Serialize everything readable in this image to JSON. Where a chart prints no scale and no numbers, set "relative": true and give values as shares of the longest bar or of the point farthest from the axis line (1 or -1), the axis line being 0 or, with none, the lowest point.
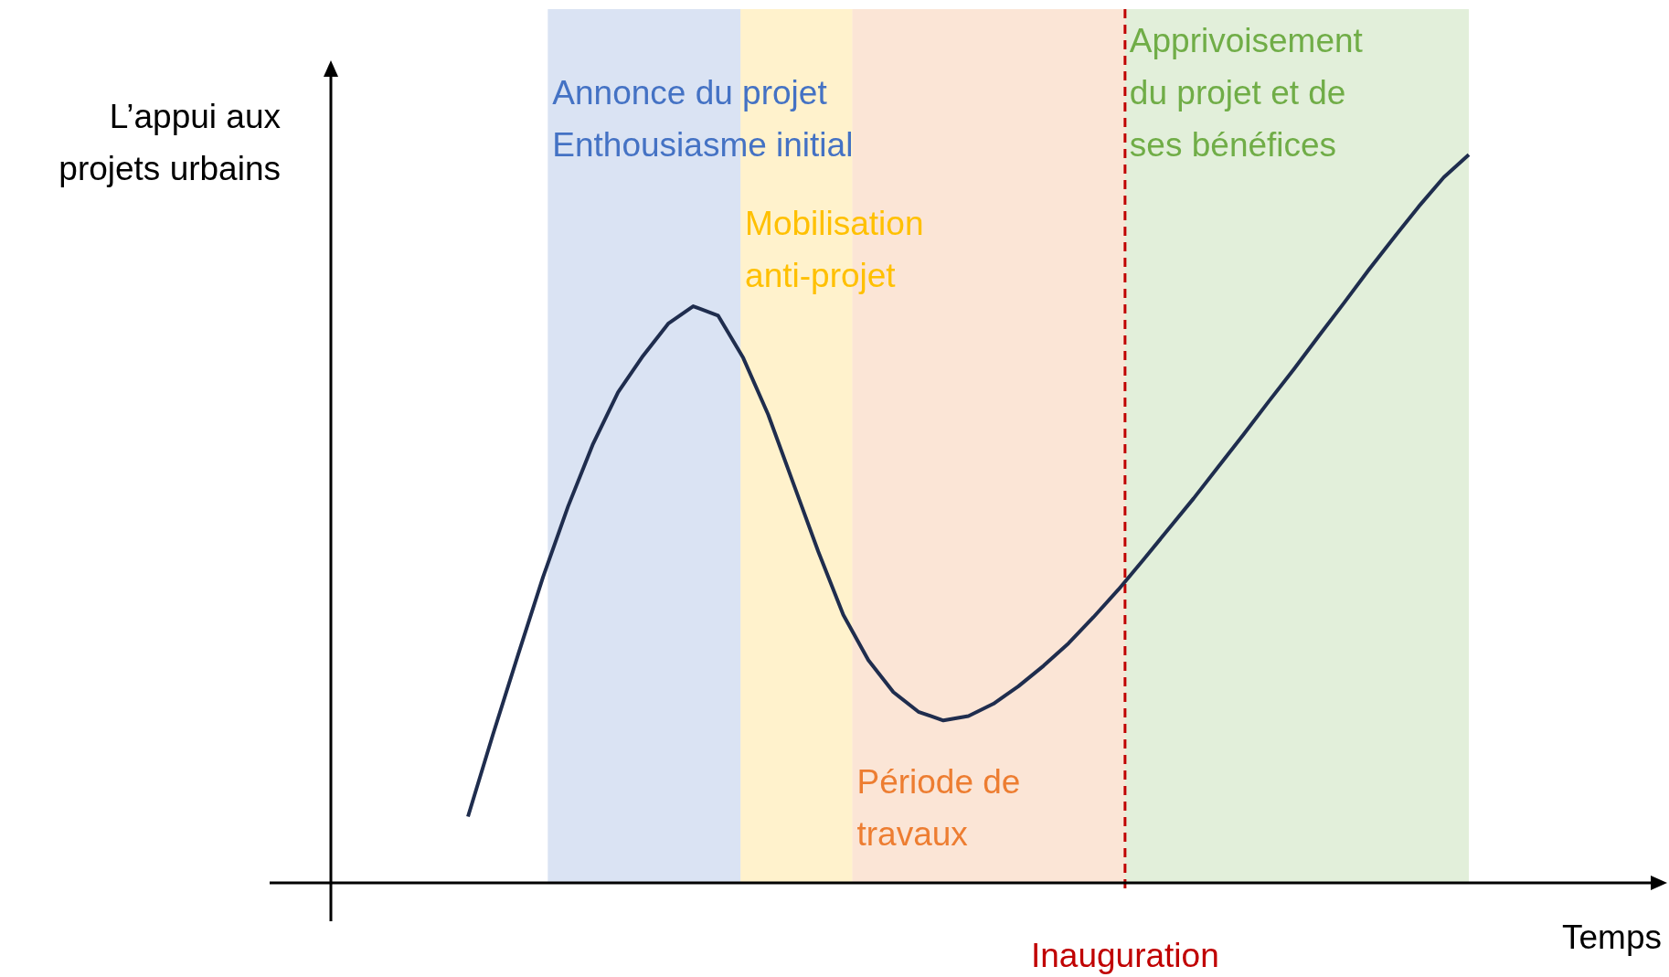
{
  "chart_data": {
    "type": "line",
    "relative": true,
    "xlabel": "Temps",
    "legend": false,
    "annotations": [
      "L’appui aux\nprojets urbains",
      "Annonce du projet\nEnthousiasme initial",
      "Mobilisation\nanti-projet",
      "Période de\ntravaux",
      "Apprivoisement\ndu projet et de\nses bénéfices",
      "Inauguration"
    ],
    "categories": [
      null,
      null,
      null,
      null,
      null,
      null,
      null,
      null,
      null,
      null,
      null,
      null,
      null,
      null,
      null,
      null,
      null,
      null,
      null,
      null,
      null,
      null,
      null,
      null,
      null,
      null,
      null,
      null,
      null,
      null,
      null,
      null,
      null,
      null,
      null,
      null,
      null,
      null,
      null,
      null,
      null
    ],
    "series": [
      {
        "color": "#1f2d4e",
        "values": [
          0.091,
          0.204,
          0.313,
          0.42,
          0.517,
          0.603,
          0.674,
          0.724,
          0.768,
          0.792,
          0.779,
          0.721,
          0.643,
          0.549,
          0.455,
          0.368,
          0.306,
          0.262,
          0.235,
          0.223,
          0.229,
          0.246,
          0.27,
          0.298,
          0.329,
          0.365,
          0.403,
          0.444,
          0.486,
          0.528,
          0.572,
          0.616,
          0.661,
          0.705,
          0.751,
          0.796,
          0.842,
          0.886,
          0.929,
          0.969,
          1
        ]
      }
    ]
  }
}
